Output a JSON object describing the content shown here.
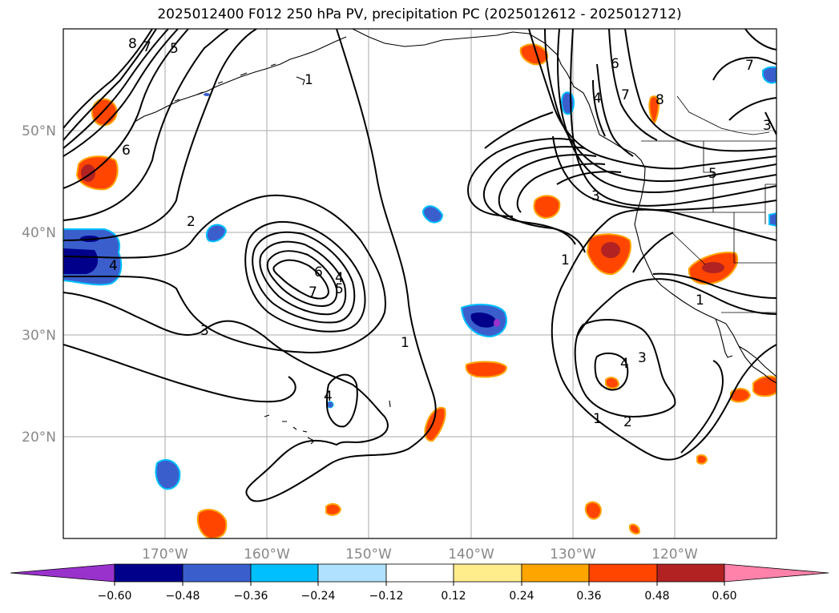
{
  "title": "2025012400 F012 250 hPa PV, precipitation PC (2025012612 - 2025012712)",
  "axes": {
    "lat_labels": [
      "50°N",
      "40°N",
      "30°N",
      "20°N"
    ],
    "lon_labels": [
      "170°W",
      "160°W",
      "150°W",
      "140°W",
      "130°W",
      "120°W"
    ]
  },
  "colorbar": {
    "tick_labels": [
      "−0.60",
      "−0.48",
      "−0.36",
      "−0.24",
      "−0.12",
      "0.12",
      "0.24",
      "0.36",
      "0.48",
      "0.60"
    ],
    "colors": [
      "#9932cc",
      "#00008b",
      "#3a5fcd",
      "#00bfff",
      "#b0e2ff",
      "#ffffff",
      "#ffec8b",
      "#ffa500",
      "#ff4500",
      "#b22222",
      "#ff82ab"
    ]
  },
  "contour_labels": [
    "8",
    "7",
    "5",
    "6",
    "2",
    "4",
    "3",
    "1",
    "7",
    "6",
    "4",
    "5",
    "3",
    "1",
    "6",
    "7",
    "8",
    "4",
    "3",
    "2",
    "1",
    "4",
    "4",
    "5",
    "3",
    "7",
    "1",
    "1"
  ],
  "colors": {
    "contour": "#000000",
    "grid": "#aaaaaa",
    "tick_label": "#888888"
  }
}
